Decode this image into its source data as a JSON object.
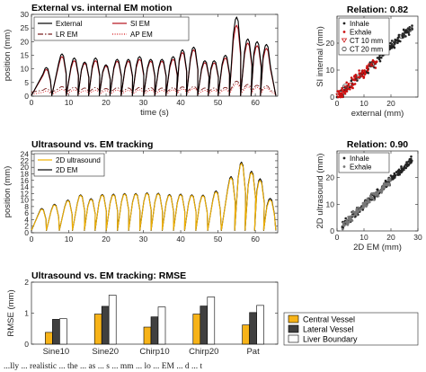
{
  "chart_data": [
    {
      "type": "line",
      "title": "External vs. internal EM motion",
      "xlabel": "time (s)",
      "ylabel": "position (mm)",
      "xlim": [
        0,
        66
      ],
      "ylim": [
        0,
        30
      ],
      "xticks": [
        0,
        10,
        20,
        30,
        40,
        50,
        60
      ],
      "yticks": [
        0,
        5,
        10,
        15,
        20,
        25,
        30
      ],
      "legend": "top-left (2 columns)",
      "series": [
        {
          "name": "External",
          "color": "#000000",
          "style": "solid",
          "cycles": [
            [
              0,
              0
            ],
            [
              4.0,
              10.5
            ],
            [
              8.2,
              15.5
            ],
            [
              11.5,
              14
            ],
            [
              14.3,
              12.5
            ],
            [
              17.2,
              14
            ],
            [
              20.0,
              11.5
            ],
            [
              23.0,
              13.5
            ],
            [
              26.0,
              13.5
            ],
            [
              29.0,
              14.5
            ],
            [
              32.0,
              13.5
            ],
            [
              35.0,
              13.5
            ],
            [
              38.0,
              14.5
            ],
            [
              40.5,
              17
            ],
            [
              43.5,
              18
            ],
            [
              46.5,
              13
            ],
            [
              49.0,
              13
            ],
            [
              52.0,
              15
            ],
            [
              55.0,
              29
            ],
            [
              58.0,
              21
            ],
            [
              60.5,
              20
            ],
            [
              63.0,
              19
            ]
          ],
          "base": 0.2
        },
        {
          "name": "SI EM",
          "color": "#b5121b",
          "style": "solid",
          "cycles": [
            [
              0,
              0
            ],
            [
              4.0,
              9.8
            ],
            [
              8.2,
              14.5
            ],
            [
              11.5,
              13
            ],
            [
              14.3,
              12
            ],
            [
              17.2,
              13
            ],
            [
              20.0,
              11
            ],
            [
              23.0,
              12.8
            ],
            [
              26.0,
              12.8
            ],
            [
              29.0,
              13.5
            ],
            [
              32.0,
              12.8
            ],
            [
              35.0,
              12.8
            ],
            [
              38.0,
              13.5
            ],
            [
              40.5,
              16
            ],
            [
              43.5,
              17
            ],
            [
              46.5,
              12.3
            ],
            [
              49.0,
              12.2
            ],
            [
              52.0,
              14
            ],
            [
              55.0,
              26
            ],
            [
              58.0,
              19.5
            ],
            [
              60.5,
              18.5
            ],
            [
              63.0,
              17.5
            ]
          ],
          "base": 0.3
        },
        {
          "name": "LR EM",
          "color": "#7a2020",
          "style": "dashdot",
          "cycles": [
            [
              0,
              0
            ],
            [
              4.0,
              2.8
            ],
            [
              8.2,
              3.5
            ],
            [
              11.5,
              3.3
            ],
            [
              14.3,
              3
            ],
            [
              17.2,
              3.2
            ],
            [
              20.0,
              2.8
            ],
            [
              23.0,
              3.1
            ],
            [
              26.0,
              3
            ],
            [
              29.0,
              3.2
            ],
            [
              32.0,
              3.1
            ],
            [
              35.0,
              3
            ],
            [
              38.0,
              3.1
            ],
            [
              40.5,
              3.4
            ],
            [
              43.5,
              3.5
            ],
            [
              46.5,
              3
            ],
            [
              49.0,
              3
            ],
            [
              52.0,
              3.2
            ],
            [
              55.0,
              5.5
            ],
            [
              58.0,
              4.3
            ],
            [
              60.5,
              4
            ],
            [
              63.0,
              3.8
            ]
          ],
          "base": 1.5
        },
        {
          "name": "AP EM",
          "color": "#d7191c",
          "style": "dotted",
          "cycles": [
            [
              0,
              0
            ],
            [
              4.0,
              1.8
            ],
            [
              8.2,
              2.5
            ],
            [
              11.5,
              2.3
            ],
            [
              14.3,
              2
            ],
            [
              17.2,
              2.2
            ],
            [
              20.0,
              2
            ],
            [
              23.0,
              2.2
            ],
            [
              26.0,
              2.1
            ],
            [
              29.0,
              2.3
            ],
            [
              32.0,
              2.2
            ],
            [
              35.0,
              2.1
            ],
            [
              38.0,
              2.3
            ],
            [
              40.5,
              2.6
            ],
            [
              43.5,
              2.8
            ],
            [
              46.5,
              2.1
            ],
            [
              49.0,
              2.1
            ],
            [
              52.0,
              2.4
            ],
            [
              55.0,
              4.5
            ],
            [
              58.0,
              3.4
            ],
            [
              60.5,
              3.2
            ],
            [
              63.0,
              3
            ]
          ],
          "base": 0.6
        }
      ]
    },
    {
      "type": "scatter",
      "title": "Relation: 0.82",
      "xlabel": "external (mm)",
      "ylabel": "SI internal (mm)",
      "xlim": [
        0,
        30
      ],
      "ylim": [
        0,
        30
      ],
      "xticks": [
        0,
        10,
        20
      ],
      "yticks": [
        0,
        10,
        20
      ],
      "legend": "top-left",
      "series": [
        {
          "name": "Inhale",
          "marker": "dot",
          "color": "#222222",
          "x_range": [
            0,
            28
          ],
          "slope": 0.93,
          "spread": 1.3
        },
        {
          "name": "Exhale",
          "marker": "dot",
          "color": "#cc1010",
          "x_range": [
            0,
            15
          ],
          "slope": 0.92,
          "spread": 1.6
        },
        {
          "name": "CT 10 mm",
          "marker": "triangle-down",
          "color": "#cc1010",
          "points": [
            [
              0.5,
              0.5
            ],
            [
              1.5,
              1.8
            ],
            [
              2.5,
              2.2
            ],
            [
              3.5,
              3.5
            ],
            [
              5,
              4.5
            ],
            [
              7,
              6.8
            ]
          ]
        },
        {
          "name": "CT 20 mm",
          "marker": "circle",
          "color": "#444444",
          "points": [
            [
              3,
              4
            ],
            [
              8,
              7.5
            ],
            [
              13,
              12
            ],
            [
              17,
              16
            ],
            [
              21,
              20
            ],
            [
              24,
              22.5
            ],
            [
              27,
              25
            ]
          ]
        }
      ]
    },
    {
      "type": "line",
      "title": "Ultrasound vs. EM tracking",
      "xlabel": "",
      "ylabel": "position (mm)",
      "xlim": [
        0,
        66
      ],
      "ylim": [
        0,
        25
      ],
      "xticks": [
        0,
        10,
        20,
        30,
        40,
        50,
        60
      ],
      "yticks": [
        0,
        2,
        4,
        6,
        8,
        10,
        12,
        14,
        16,
        18,
        20,
        22,
        24
      ],
      "legend": "top-left",
      "series": [
        {
          "name": "2D ultrasound",
          "color": "#f0b000",
          "style": "solid",
          "cycles": [
            [
              0,
              0
            ],
            [
              2.8,
              7.2
            ],
            [
              6.2,
              8.5
            ],
            [
              9.8,
              9.8
            ],
            [
              13.2,
              11.4
            ],
            [
              16.0,
              10.2
            ],
            [
              19.0,
              11.5
            ],
            [
              22.0,
              11.6
            ],
            [
              25.0,
              11.8
            ],
            [
              28.0,
              11.8
            ],
            [
              31.0,
              12
            ],
            [
              34.0,
              11.9
            ],
            [
              37.0,
              11.5
            ],
            [
              40.0,
              11.6
            ],
            [
              43.0,
              11.4
            ],
            [
              46.0,
              11.3
            ],
            [
              49.5,
              12.5
            ],
            [
              53.5,
              16.8
            ],
            [
              56.3,
              21.2
            ],
            [
              59.0,
              18.4
            ],
            [
              61.3,
              16
            ],
            [
              64.0,
              10
            ]
          ],
          "base": 0.8
        },
        {
          "name": "2D EM",
          "color": "#000000",
          "style": "solid",
          "cycles": [
            [
              0,
              0
            ],
            [
              2.8,
              7.4
            ],
            [
              6.2,
              8.7
            ],
            [
              9.8,
              10
            ],
            [
              13.2,
              11.6
            ],
            [
              16.0,
              10.4
            ],
            [
              19.0,
              11.7
            ],
            [
              22.0,
              11.8
            ],
            [
              25.0,
              12
            ],
            [
              28.0,
              12
            ],
            [
              31.0,
              12.2
            ],
            [
              34.0,
              12.1
            ],
            [
              37.0,
              11.7
            ],
            [
              40.0,
              11.8
            ],
            [
              43.0,
              11.6
            ],
            [
              46.0,
              11.5
            ],
            [
              49.5,
              12.8
            ],
            [
              53.5,
              17.2
            ],
            [
              56.3,
              21.6
            ],
            [
              59.0,
              18.8
            ],
            [
              61.3,
              16.5
            ],
            [
              64.0,
              10.5
            ]
          ],
          "base": 0.7
        }
      ]
    },
    {
      "type": "scatter",
      "title": "Relation: 0.90",
      "xlabel": "2D EM (mm)",
      "ylabel": "2D ultrasound (mm)",
      "xlim": [
        0,
        30
      ],
      "ylim": [
        0,
        30
      ],
      "xticks": [
        0,
        10,
        20,
        30
      ],
      "yticks": [
        0,
        10,
        20
      ],
      "legend": "top-left",
      "series": [
        {
          "name": "Inhale",
          "marker": "dot",
          "color": "#222222",
          "x_range": [
            2,
            28
          ],
          "slope": 0.96,
          "spread": 1.1
        },
        {
          "name": "Exhale",
          "marker": "dot",
          "color": "#777777",
          "x_range": [
            2,
            20
          ],
          "slope": 0.95,
          "spread": 1.2
        }
      ]
    },
    {
      "type": "bar",
      "title": "Ultrasound vs. EM tracking: RMSE",
      "xlabel": "",
      "ylabel": "RMSE (mm)",
      "ylim": [
        0,
        2
      ],
      "yticks": [
        0,
        1,
        2
      ],
      "categories": [
        "Sine10",
        "Sine20",
        "Chirp10",
        "Chirp20",
        "Pat"
      ],
      "legend": "right (outside)",
      "series": [
        {
          "name": "Central Vessel",
          "color": "#f7b318",
          "values": [
            0.38,
            0.97,
            0.55,
            0.97,
            0.62
          ]
        },
        {
          "name": "Lateral Vessel",
          "color": "#404040",
          "values": [
            0.8,
            1.22,
            0.88,
            1.23,
            1.02
          ]
        },
        {
          "name": "Liver Boundary",
          "color": "#ffffff",
          "values": [
            0.82,
            1.58,
            1.2,
            1.52,
            1.25
          ]
        }
      ]
    }
  ],
  "caption": "...lly ... realistic ... the ... as ... s ... mm ... lo ... EM ... d ... t"
}
